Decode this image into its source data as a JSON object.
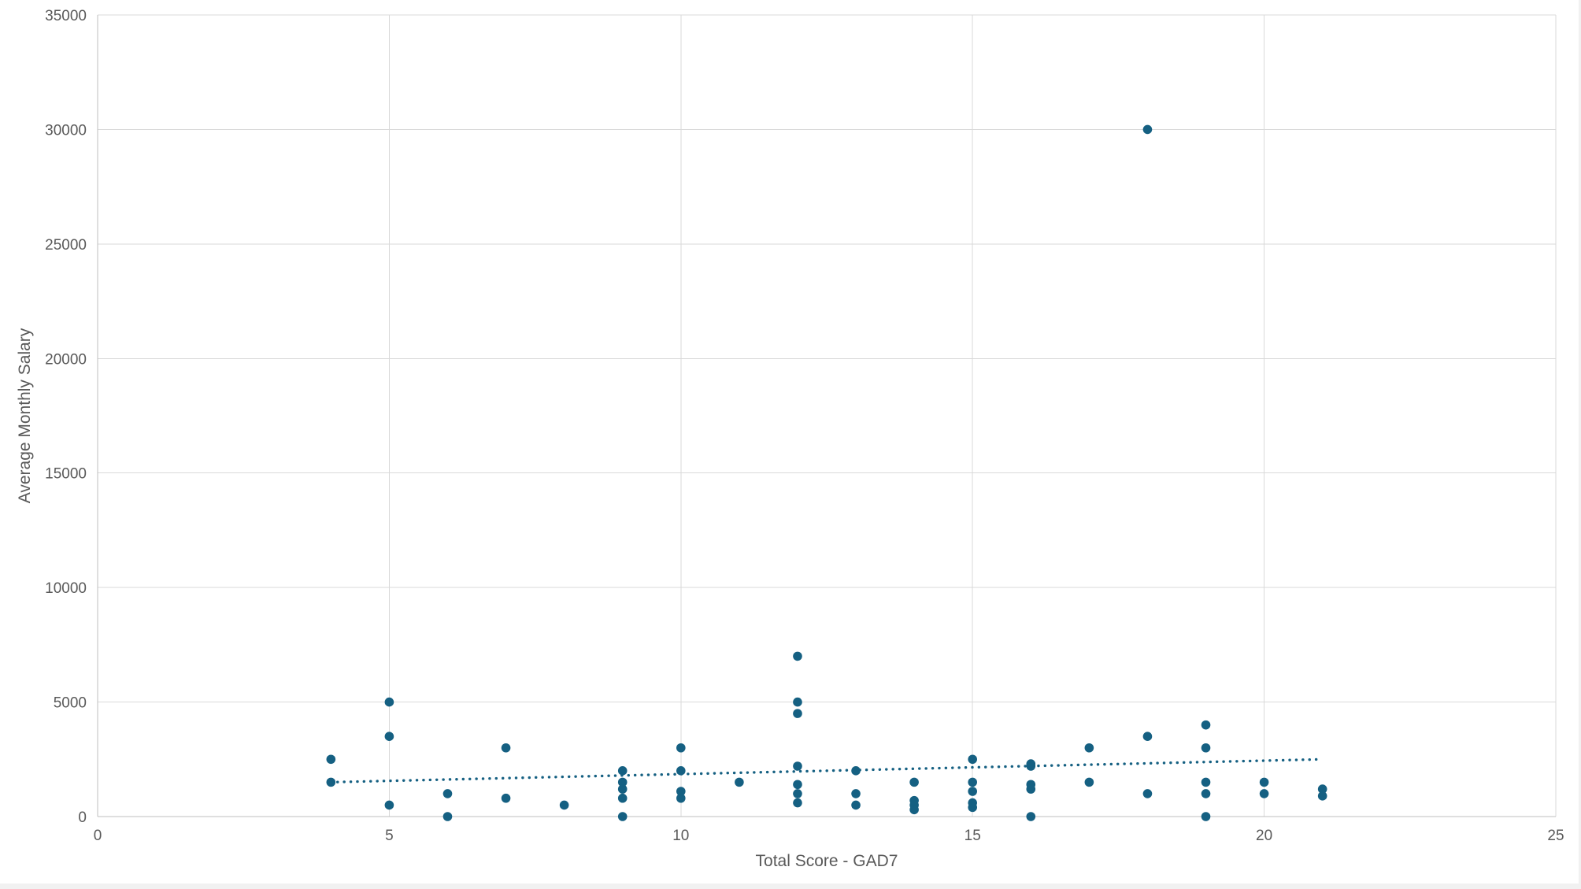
{
  "chart_data": {
    "type": "scatter",
    "title": "",
    "xlabel": "Total Score - GAD7",
    "ylabel": "Average Monthly Salary",
    "xlim": [
      0,
      25
    ],
    "ylim": [
      0,
      35000
    ],
    "x_ticks": [
      0,
      5,
      10,
      15,
      20,
      25
    ],
    "y_ticks": [
      0,
      5000,
      10000,
      15000,
      20000,
      25000,
      30000,
      35000
    ],
    "grid": true,
    "legend_position": "none",
    "series": [
      {
        "name": "Average Monthly Salary vs GAD7",
        "points": [
          [
            4,
            2500
          ],
          [
            4,
            1500
          ],
          [
            5,
            5000
          ],
          [
            5,
            3500
          ],
          [
            5,
            500
          ],
          [
            6,
            1000
          ],
          [
            6,
            0
          ],
          [
            7,
            3000
          ],
          [
            7,
            800
          ],
          [
            8,
            500
          ],
          [
            9,
            2000
          ],
          [
            9,
            1500
          ],
          [
            9,
            1200
          ],
          [
            9,
            800
          ],
          [
            9,
            0
          ],
          [
            10,
            3000
          ],
          [
            10,
            2000
          ],
          [
            10,
            1100
          ],
          [
            10,
            800
          ],
          [
            11,
            1500
          ],
          [
            12,
            7000
          ],
          [
            12,
            5000
          ],
          [
            12,
            4500
          ],
          [
            12,
            2200
          ],
          [
            12,
            1400
          ],
          [
            12,
            1000
          ],
          [
            12,
            600
          ],
          [
            13,
            2000
          ],
          [
            13,
            1000
          ],
          [
            13,
            500
          ],
          [
            14,
            1500
          ],
          [
            14,
            700
          ],
          [
            14,
            500
          ],
          [
            14,
            300
          ],
          [
            15,
            2500
          ],
          [
            15,
            1500
          ],
          [
            15,
            1100
          ],
          [
            15,
            600
          ],
          [
            15,
            400
          ],
          [
            16,
            2300
          ],
          [
            16,
            2200
          ],
          [
            16,
            1400
          ],
          [
            16,
            1200
          ],
          [
            16,
            0
          ],
          [
            17,
            3000
          ],
          [
            17,
            1500
          ],
          [
            18,
            30000
          ],
          [
            18,
            3500
          ],
          [
            18,
            1000
          ],
          [
            19,
            4000
          ],
          [
            19,
            3000
          ],
          [
            19,
            1500
          ],
          [
            19,
            1000
          ],
          [
            19,
            0
          ],
          [
            20,
            1500
          ],
          [
            20,
            1000
          ],
          [
            21,
            1200
          ],
          [
            21,
            900
          ]
        ]
      }
    ],
    "trendline": {
      "style": "dotted",
      "x1": 4,
      "y1": 1500,
      "x2": 21,
      "y2": 2500
    },
    "colors": {
      "point": "#156082",
      "trendline": "#156082",
      "gridline": "#D9D9D9",
      "axis_line": "#BFBFBF",
      "tick_label": "#595959",
      "axis_title": "#595959"
    }
  }
}
